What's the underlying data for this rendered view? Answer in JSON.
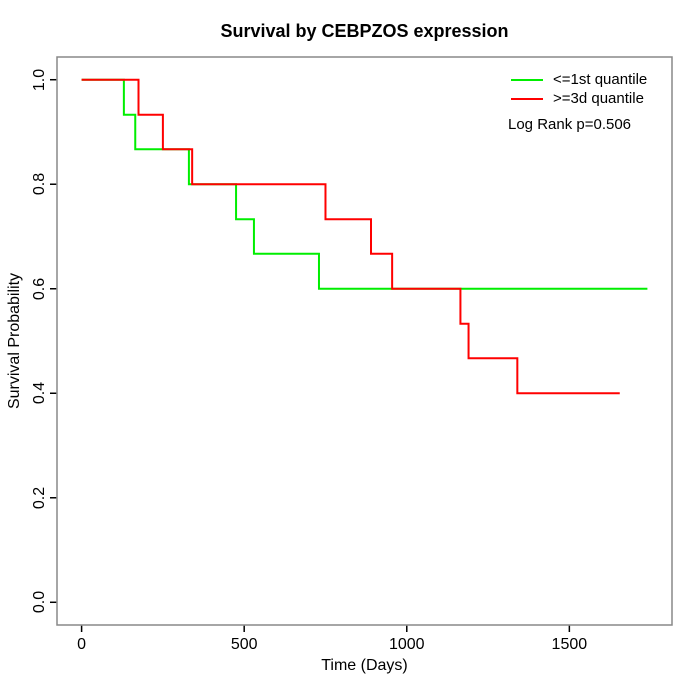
{
  "chart_data": {
    "type": "line",
    "subtype": "kaplan-meier-step",
    "title": "Survival by CEBPZOS expression",
    "xlabel": "Time (Days)",
    "ylabel": "Survival Probability",
    "xlim": [
      0,
      1740
    ],
    "ylim": [
      0.0,
      1.0
    ],
    "x_ticks": [
      0,
      500,
      1000,
      1500
    ],
    "x_tick_labels": [
      "0",
      "500",
      "1000",
      "1500"
    ],
    "y_ticks": [
      0.0,
      0.2,
      0.4,
      0.6,
      0.8,
      1.0
    ],
    "y_tick_labels": [
      "0.0",
      "0.2",
      "0.4",
      "0.6",
      "0.8",
      "1.0"
    ],
    "grid": false,
    "legend_position": "top-right",
    "annotation": "Log Rank p=0.506",
    "series": [
      {
        "name": "<=1st quantile",
        "color": "#00EE00",
        "start": {
          "t": 0,
          "s": 1.0
        },
        "steps": [
          {
            "t": 130,
            "s": 0.933
          },
          {
            "t": 165,
            "s": 0.867
          },
          {
            "t": 330,
            "s": 0.8
          },
          {
            "t": 475,
            "s": 0.733
          },
          {
            "t": 530,
            "s": 0.667
          },
          {
            "t": 730,
            "s": 0.6
          }
        ],
        "t_end": 1740
      },
      {
        "name": ">=3d quantile",
        "color": "#FF0000",
        "start": {
          "t": 0,
          "s": 1.0
        },
        "steps": [
          {
            "t": 175,
            "s": 0.933
          },
          {
            "t": 250,
            "s": 0.867
          },
          {
            "t": 340,
            "s": 0.8
          },
          {
            "t": 750,
            "s": 0.733
          },
          {
            "t": 890,
            "s": 0.667
          },
          {
            "t": 955,
            "s": 0.6
          },
          {
            "t": 1165,
            "s": 0.533
          },
          {
            "t": 1190,
            "s": 0.467
          },
          {
            "t": 1340,
            "s": 0.4
          }
        ],
        "t_end": 1655
      }
    ]
  },
  "frame": {
    "box_color": "#888888",
    "tick_color": "#000000",
    "background": "#FFFFFF"
  }
}
